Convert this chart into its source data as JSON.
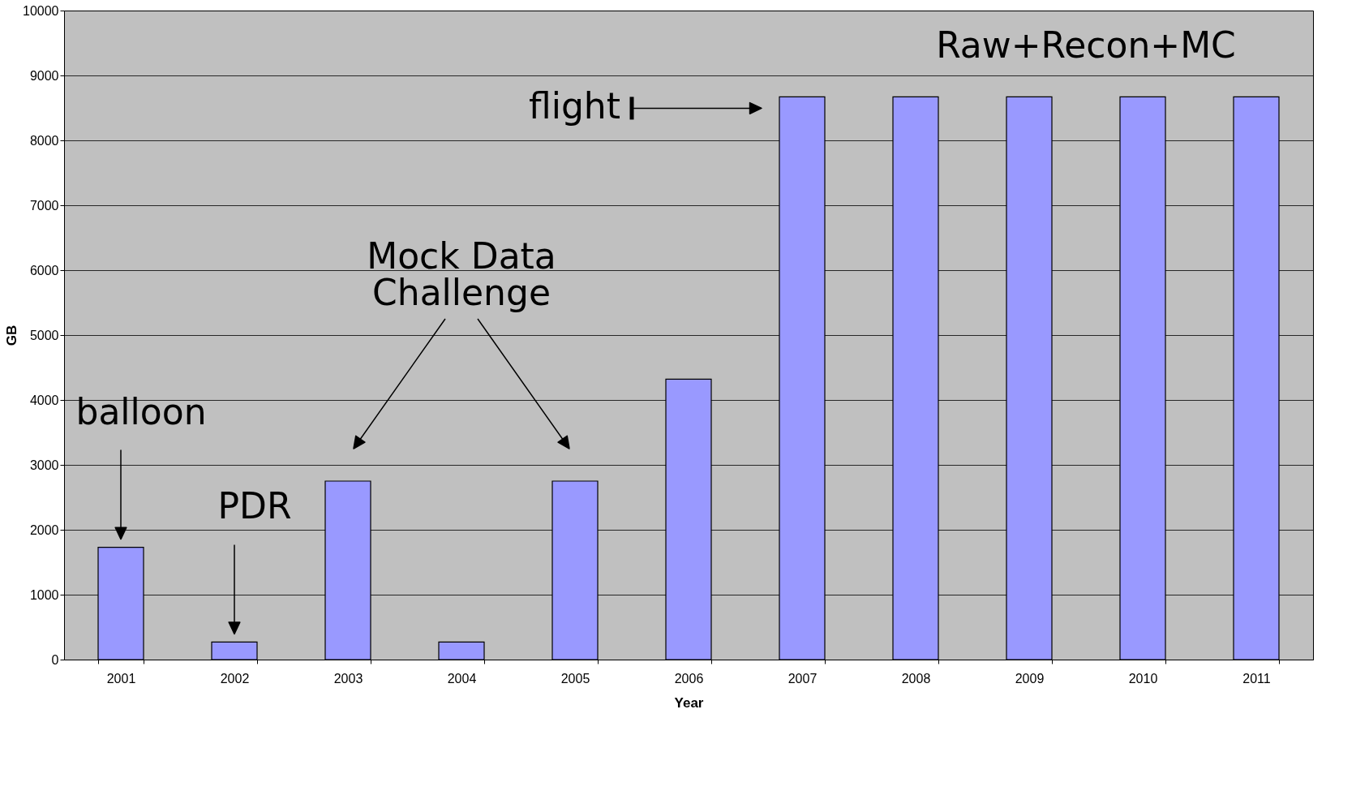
{
  "chart_data": {
    "type": "bar",
    "xlabel": "Year",
    "ylabel": "GB",
    "categories": [
      "2001",
      "2002",
      "2003",
      "2004",
      "2005",
      "2006",
      "2007",
      "2008",
      "2009",
      "2010",
      "2011"
    ],
    "values": [
      1730,
      270,
      2750,
      270,
      2750,
      4320,
      8670,
      8670,
      8670,
      8670,
      8670
    ],
    "color": "#9999ff",
    "ylim": [
      0,
      10000
    ],
    "yticks": [
      0,
      1000,
      2000,
      3000,
      4000,
      5000,
      6000,
      7000,
      8000,
      9000,
      10000
    ],
    "grid": "y",
    "annotations": [
      "balloon",
      "PDR",
      "Mock Data Challenge",
      "flight",
      "Raw+Recon+MC"
    ]
  }
}
